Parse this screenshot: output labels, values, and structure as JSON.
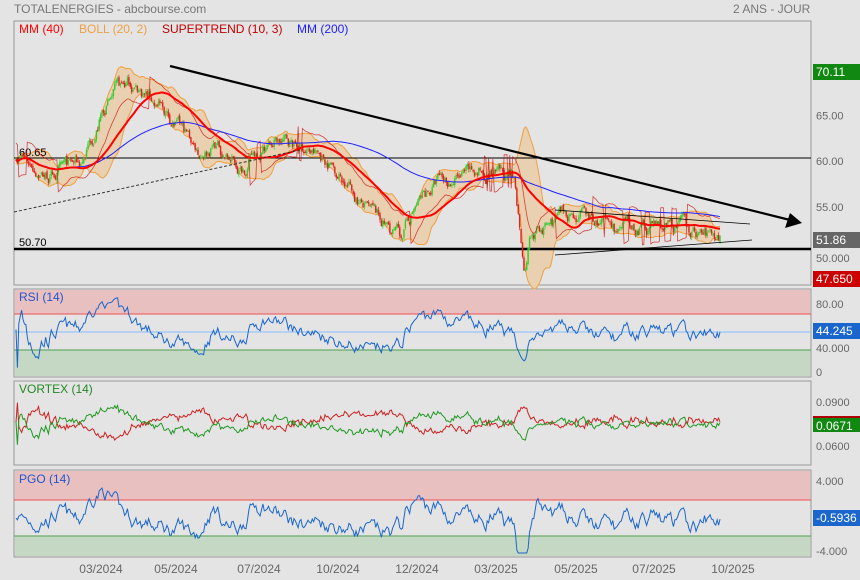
{
  "header": {
    "title": "TOTALENERGIES - abcbourse.com",
    "period": "2 ANS - JOUR"
  },
  "legend": {
    "mm40": "MM (40)",
    "boll": "BOLL (20, 2)",
    "supertrend": "SUPERTREND (10, 3)",
    "mm200": "MM (200)"
  },
  "colors": {
    "mm40": "#ff0000",
    "boll": "#f0a040",
    "supertrend": "#cc0000",
    "mm200": "#2020ff",
    "up": "#33cc33",
    "down": "#dd2222"
  },
  "price_axis": {
    "ticks": [
      "65.00",
      "60.00",
      "55.00",
      "50.000"
    ],
    "high_tag": "70.11",
    "last_tag": "51.86",
    "low_tag": "47.650",
    "levels": [
      "60.65",
      "50.70"
    ]
  },
  "rsi": {
    "title": "RSI (14)",
    "ticks": [
      "80.00",
      "40.000",
      "0"
    ],
    "value": "44.245"
  },
  "vortex": {
    "title": "VORTEX (14)",
    "ticks": [
      "0.0900",
      "0.0600"
    ],
    "value": "0.0671"
  },
  "pgo": {
    "title": "PGO (14)",
    "ticks": [
      "4.000",
      "-4.000"
    ],
    "value": "-0.5936"
  },
  "x_axis": [
    "03/2024",
    "05/2024",
    "07/2024",
    "10/2024",
    "12/2024",
    "03/2025",
    "05/2025",
    "07/2025",
    "10/2025"
  ],
  "chart_data": {
    "type": "candlestick",
    "ylim": [
      46,
      74
    ],
    "price_path": [
      [
        "01/2024",
        61
      ],
      [
        "02/2024",
        58.5
      ],
      [
        "03/2024",
        59.5
      ],
      [
        "04/2024",
        66
      ],
      [
        "04/2024",
        68.5
      ],
      [
        "05/2024",
        67
      ],
      [
        "06/2024",
        64
      ],
      [
        "06/2024",
        61
      ],
      [
        "07/2024",
        62
      ],
      [
        "08/2024",
        59
      ],
      [
        "09/2024",
        62
      ],
      [
        "10/2024",
        62
      ],
      [
        "10/2024",
        60
      ],
      [
        "11/2024",
        58
      ],
      [
        "12/2024",
        54
      ],
      [
        "12/2024",
        51.5
      ],
      [
        "01/2025",
        55
      ],
      [
        "02/2025",
        58
      ],
      [
        "03/2025",
        58
      ],
      [
        "03/2025",
        59
      ],
      [
        "04/2025",
        57
      ],
      [
        "04/2025",
        48.5
      ],
      [
        "05/2025",
        52
      ],
      [
        "05/2025",
        52.5
      ],
      [
        "06/2025",
        54.5
      ],
      [
        "07/2025",
        53
      ],
      [
        "08/2025",
        52
      ],
      [
        "09/2025",
        53
      ],
      [
        "09/2025",
        52.5
      ],
      [
        "10/2025",
        51.86
      ]
    ],
    "high": 70.11,
    "low": 47.65,
    "last": 51.86,
    "horizontal_levels": [
      60.65,
      50.7
    ]
  }
}
